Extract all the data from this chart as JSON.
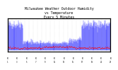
{
  "title": "Milwaukee Weather Outdoor Humidity\nvs Temperature\nEvery 5 Minutes",
  "title_fontsize": 3.5,
  "background_color": "#ffffff",
  "grid_color": "#cccccc",
  "blue_color": "#0000ff",
  "red_color": "#ff0000",
  "xlim": [
    0,
    1
  ],
  "ylim_humidity": [
    0,
    100
  ],
  "ylim_temp": [
    -20,
    110
  ],
  "n_points": 300,
  "seed": 42
}
